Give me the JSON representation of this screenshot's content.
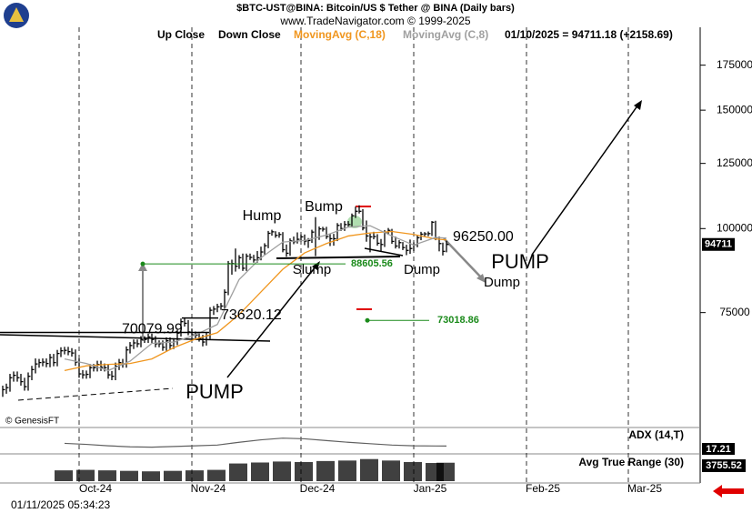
{
  "header": {
    "title": "$BTC-UST@BINA:  Bitcoin/US $ Tether @ BINA  (Daily bars)",
    "site": "www.TradeNavigator.com © 1999-2025",
    "copyright": "© GenesisFT",
    "footer_date": "01/11/2025 05:34:23"
  },
  "chart_data": [
    {
      "type": "ohlc",
      "bar_legend": [
        "Up Close",
        "Down Close"
      ],
      "status": "01/10/2025 = 94711.18 (+2158.69)",
      "last_price_label": "94711",
      "log_scale": true,
      "grid": "x",
      "bar_color": "#000000",
      "xlim": [
        -0.75,
        191.75
      ],
      "xticks": [
        {
          "value": 21,
          "label": "Oct-24"
        },
        {
          "value": 52,
          "label": "Nov-24"
        },
        {
          "value": 82,
          "label": "Dec-24"
        },
        {
          "value": 113,
          "label": "Jan-25"
        },
        {
          "value": 144,
          "label": "Feb-25"
        },
        {
          "value": 172,
          "label": "Mar-25"
        }
      ],
      "ylim": [
        50600,
        198000
      ],
      "yticks": [
        75000,
        100000,
        125000,
        150000,
        175000
      ],
      "close": [
        57600,
        58000,
        60000,
        60500,
        60000,
        59200,
        58200,
        60300,
        61700,
        62900,
        63200,
        63300,
        63000,
        64300,
        63200,
        65200,
        65800,
        65900,
        65600,
        65300,
        63300,
        60800,
        60600,
        60700,
        62100,
        62100,
        62800,
        62200,
        62100,
        60600,
        60300,
        62400,
        63200,
        62900,
        66000,
        67000,
        67600,
        67400,
        68400,
        68400,
        69000,
        68400,
        67400,
        67400,
        66600,
        68100,
        67000,
        67900,
        69900,
        72700,
        72300,
        70200,
        69500,
        69400,
        68700,
        67800,
        69300,
        75600,
        75900,
        76500,
        76700,
        80400,
        88700,
        88700,
        87900,
        90500,
        87300,
        91000,
        90600,
        89800,
        90500,
        92300,
        94300,
        98400,
        98900,
        97700,
        98000,
        93000,
        91900,
        95900,
        95600,
        96400,
        97200,
        95800,
        96000,
        98800,
        97000,
        99900,
        99800,
        97300,
        96600,
        96600,
        101100,
        100000,
        101400,
        101400,
        104500,
        106100,
        106100,
        100200,
        97500,
        97200,
        97300,
        95100,
        94700,
        98700,
        99400,
        95700,
        94200,
        95300,
        93700,
        92800,
        93400,
        94600,
        96900,
        98100,
        98200,
        98300,
        102200,
        96900,
        95000,
        92500,
        94711.18
      ],
      "high": [
        58400,
        58800,
        60800,
        61300,
        61300,
        60800,
        60000,
        61100,
        62500,
        64100,
        64000,
        64100,
        64100,
        65100,
        65100,
        66000,
        66600,
        66700,
        66700,
        66400,
        66100,
        64100,
        61600,
        61500,
        62900,
        62900,
        63600,
        63600,
        63000,
        62900,
        61400,
        63200,
        64000,
        64000,
        66800,
        67800,
        68400,
        68400,
        69200,
        69200,
        69800,
        69800,
        69200,
        68200,
        68200,
        68900,
        68900,
        68700,
        70700,
        73500,
        73600,
        73100,
        71000,
        70300,
        70200,
        69500,
        70100,
        76400,
        76700,
        77300,
        77500,
        81200,
        89500,
        89900,
        93400,
        91300,
        91800,
        91800,
        91800,
        91400,
        92600,
        94000,
        95100,
        99200,
        99600,
        99100,
        98800,
        98800,
        94700,
        96700,
        97300,
        98700,
        98000,
        98000,
        96800,
        99600,
        104000,
        100700,
        100600,
        100600,
        98100,
        98200,
        101900,
        101900,
        102600,
        102600,
        105300,
        107800,
        108300,
        106900,
        102800,
        98300,
        98900,
        98100,
        96500,
        99500,
        100200,
        99900,
        97300,
        96100,
        95500,
        94600,
        96300,
        95400,
        97700,
        98900,
        98800,
        99000,
        102600,
        102700,
        97300,
        95300,
        95900
      ],
      "low": [
        56200,
        56800,
        57200,
        59200,
        59200,
        58400,
        57400,
        57400,
        59500,
        60900,
        62100,
        62400,
        62200,
        62200,
        62400,
        62400,
        64400,
        65000,
        64800,
        64500,
        62500,
        60000,
        59800,
        59800,
        59900,
        61300,
        61300,
        61400,
        61300,
        59800,
        59500,
        59500,
        61600,
        62100,
        62100,
        65200,
        66200,
        66600,
        66600,
        67600,
        67600,
        67600,
        66600,
        66600,
        65800,
        65800,
        66200,
        66200,
        67100,
        69100,
        71500,
        69400,
        68700,
        68600,
        67900,
        66800,
        67000,
        68500,
        74400,
        75100,
        75700,
        75900,
        79600,
        85400,
        86300,
        87100,
        86500,
        86500,
        89800,
        89000,
        89000,
        89700,
        91500,
        93500,
        97600,
        96900,
        96900,
        92200,
        90800,
        91100,
        94800,
        95000,
        95600,
        94500,
        93600,
        95200,
        91000,
        96200,
        99000,
        96500,
        94200,
        94300,
        95800,
        99200,
        99200,
        100600,
        100600,
        103700,
        105300,
        99400,
        95600,
        92200,
        96400,
        94300,
        92500,
        93900,
        97900,
        94900,
        93400,
        93400,
        92900,
        91300,
        91700,
        92600,
        93800,
        96100,
        97300,
        97400,
        97500,
        96100,
        92500,
        91200,
        92200
      ],
      "series": [
        {
          "name": "MovingAvg (C,18)",
          "color": "#f0961e",
          "x": [
            17,
            23,
            29,
            35,
            41,
            47,
            53,
            59,
            65,
            71,
            77,
            83,
            89,
            95,
            101,
            107,
            113,
            119,
            122
          ],
          "values": [
            61500,
            62500,
            62800,
            63000,
            64000,
            66500,
            68500,
            70000,
            74500,
            80500,
            87000,
            92000,
            95000,
            97500,
            98500,
            99000,
            98000,
            96500,
            96200
          ]
        },
        {
          "name": "MovingAvg (C,8)",
          "color": "#a0a0a0",
          "x": [
            17,
            23,
            29,
            35,
            41,
            47,
            53,
            59,
            65,
            71,
            77,
            83,
            89,
            95,
            101,
            107,
            113,
            119,
            122
          ],
          "values": [
            64000,
            63000,
            61500,
            63500,
            67500,
            67800,
            69500,
            72000,
            84000,
            90500,
            95500,
            96000,
            97800,
            100500,
            101000,
            97500,
            94500,
            97000,
            96800
          ]
        }
      ],
      "annotations": [
        "Hump",
        "Bump",
        "Slump",
        "Dump",
        "Dump",
        "PUMP",
        "PUMP"
      ],
      "price_levels": [
        70079.99,
        73620.12,
        {
          "value": 96250,
          "label": "96250.00"
        },
        88605.56,
        73018.86
      ]
    },
    {
      "type": "line",
      "title": "ADX (14,T)",
      "color": "#606060",
      "ylim": [
        0,
        60
      ],
      "x": [
        17,
        23,
        29,
        35,
        41,
        47,
        53,
        59,
        65,
        71,
        77,
        83,
        89,
        95,
        101,
        107,
        113,
        119,
        122
      ],
      "values": [
        25,
        22,
        18,
        15,
        14,
        16,
        18,
        20,
        28,
        35,
        40,
        38,
        33,
        28,
        24,
        20,
        18,
        17.5,
        17.21
      ]
    },
    {
      "type": "bar",
      "title": "Avg True Range (30)",
      "color": "#000000",
      "ylim": [
        0,
        5000
      ],
      "x": [
        17,
        23,
        29,
        35,
        41,
        47,
        53,
        59,
        65,
        71,
        77,
        83,
        89,
        95,
        101,
        107,
        113,
        119,
        122
      ],
      "values": [
        2200,
        2300,
        2200,
        2100,
        2000,
        2100,
        2200,
        2300,
        3600,
        3800,
        4000,
        3900,
        4100,
        4200,
        4500,
        4200,
        3900,
        3700,
        3755.52
      ]
    }
  ]
}
